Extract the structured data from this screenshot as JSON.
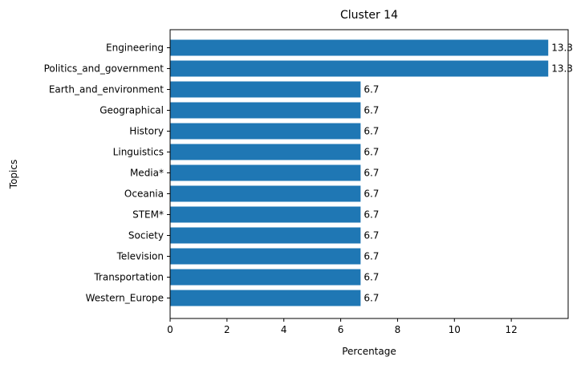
{
  "chart_data": {
    "type": "bar",
    "orientation": "horizontal",
    "title": "Cluster 14",
    "xlabel": "Percentage",
    "ylabel": "Topics",
    "categories": [
      "Engineering",
      "Politics_and_government",
      "Earth_and_environment",
      "Geographical",
      "History",
      "Linguistics",
      "Media*",
      "Oceania",
      "STEM*",
      "Society",
      "Television",
      "Transportation",
      "Western_Europe"
    ],
    "values": [
      13.3,
      13.3,
      6.7,
      6.7,
      6.7,
      6.7,
      6.7,
      6.7,
      6.7,
      6.7,
      6.7,
      6.7,
      6.7
    ],
    "data_labels": [
      "13.3",
      "13.3",
      "6.7",
      "6.7",
      "6.7",
      "6.7",
      "6.7",
      "6.7",
      "6.7",
      "6.7",
      "6.7",
      "6.7",
      "6.7"
    ],
    "xlim": [
      0,
      14
    ],
    "xticks": [
      0,
      2,
      4,
      6,
      8,
      10,
      12
    ],
    "grid": false,
    "bar_color": "#1f77b4"
  }
}
